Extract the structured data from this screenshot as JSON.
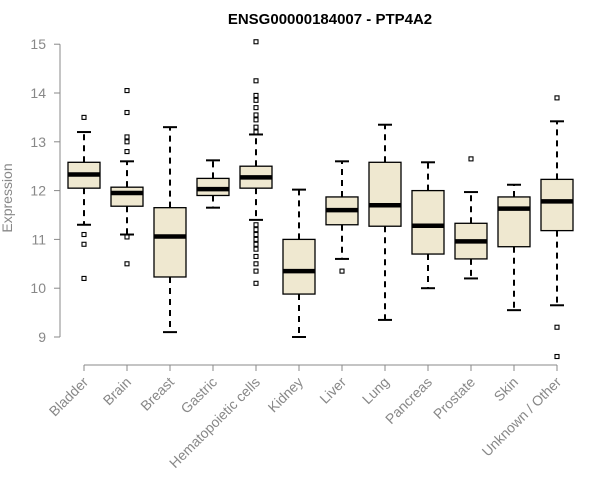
{
  "chart_data": {
    "type": "boxplot",
    "title": "ENSG00000184007 - PTP4A2",
    "xlabel": "",
    "ylabel": "Expression",
    "ylim": [
      8.5,
      15.2
    ],
    "yticks": [
      9,
      10,
      11,
      12,
      13,
      14,
      15
    ],
    "categories": [
      "Bladder",
      "Brain",
      "Breast",
      "Gastric",
      "Hematopoietic cells",
      "Kidney",
      "Liver",
      "Lung",
      "Pancreas",
      "Prostate",
      "Skin",
      "Unknown / Other"
    ],
    "boxes": [
      {
        "name": "Bladder",
        "whisker_low": 11.3,
        "q1": 12.05,
        "median": 12.33,
        "q3": 12.58,
        "whisker_high": 13.2,
        "outliers": [
          13.5,
          11.1,
          10.9,
          10.2
        ]
      },
      {
        "name": "Brain",
        "whisker_low": 11.1,
        "q1": 11.68,
        "median": 11.95,
        "q3": 12.07,
        "whisker_high": 12.6,
        "outliers": [
          14.05,
          13.6,
          13.1,
          13.0,
          12.8,
          11.05,
          10.5
        ]
      },
      {
        "name": "Breast",
        "whisker_low": 9.1,
        "q1": 10.23,
        "median": 11.06,
        "q3": 11.65,
        "whisker_high": 13.3,
        "outliers": []
      },
      {
        "name": "Gastric",
        "whisker_low": 11.65,
        "q1": 11.9,
        "median": 12.03,
        "q3": 12.25,
        "whisker_high": 12.62,
        "outliers": []
      },
      {
        "name": "Hematopoietic cells",
        "whisker_low": 11.4,
        "q1": 12.05,
        "median": 12.27,
        "q3": 12.5,
        "whisker_high": 13.15,
        "outliers": [
          15.05,
          14.25,
          13.95,
          13.85,
          13.7,
          13.55,
          13.45,
          13.3,
          13.2,
          11.3,
          11.2,
          11.1,
          11.0,
          10.9,
          10.8,
          10.65,
          10.5,
          10.35,
          10.1
        ]
      },
      {
        "name": "Kidney",
        "whisker_low": 9.0,
        "q1": 9.88,
        "median": 10.35,
        "q3": 11.0,
        "whisker_high": 12.02,
        "outliers": []
      },
      {
        "name": "Liver",
        "whisker_low": 10.6,
        "q1": 11.3,
        "median": 11.6,
        "q3": 11.87,
        "whisker_high": 12.6,
        "outliers": [
          10.35
        ]
      },
      {
        "name": "Lung",
        "whisker_low": 9.35,
        "q1": 11.27,
        "median": 11.7,
        "q3": 12.58,
        "whisker_high": 13.35,
        "outliers": []
      },
      {
        "name": "Pancreas",
        "whisker_low": 10.0,
        "q1": 10.7,
        "median": 11.28,
        "q3": 12.0,
        "whisker_high": 12.58,
        "outliers": []
      },
      {
        "name": "Prostate",
        "whisker_low": 10.2,
        "q1": 10.6,
        "median": 10.96,
        "q3": 11.33,
        "whisker_high": 11.97,
        "outliers": [
          12.65
        ]
      },
      {
        "name": "Skin",
        "whisker_low": 9.55,
        "q1": 10.85,
        "median": 11.63,
        "q3": 11.87,
        "whisker_high": 12.12,
        "outliers": []
      },
      {
        "name": "Unknown / Other",
        "whisker_low": 9.65,
        "q1": 11.18,
        "median": 11.78,
        "q3": 12.23,
        "whisker_high": 13.42,
        "outliers": [
          13.9,
          9.2,
          8.6
        ]
      }
    ],
    "colors": {
      "box_fill": "#efe8d0",
      "axis": "#888888",
      "stroke": "#000000"
    },
    "grid": false,
    "legend": "none"
  }
}
